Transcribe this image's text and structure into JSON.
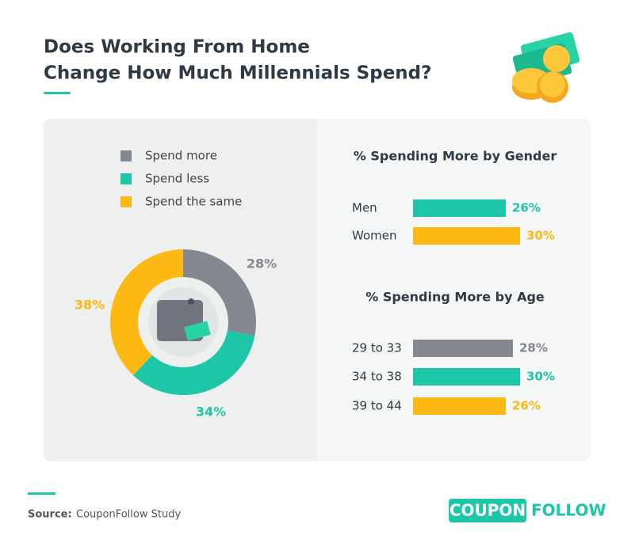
{
  "title": [
    "Does Working From Home",
    "Change How Much Millennials Spend?"
  ],
  "chart_data": [
    {
      "type": "pie",
      "categories": [
        "Spend more",
        "Spend less",
        "Spend the same"
      ],
      "values": [
        28,
        34,
        38
      ],
      "value_labels": [
        "28%",
        "34%",
        "38%"
      ],
      "colors": [
        "#858791",
        "#1dc6a6",
        "#fdb813"
      ]
    },
    {
      "type": "bar",
      "title": "% Spending More by Gender",
      "categories": [
        "Men",
        "Women"
      ],
      "values": [
        26,
        30
      ],
      "value_labels": [
        "26%",
        "30%"
      ],
      "colors": [
        "#1dc6a6",
        "#fdb813"
      ]
    },
    {
      "type": "bar",
      "title": "% Spending More by Age",
      "categories": [
        "29 to 33",
        "34 to 38",
        "39 to 44"
      ],
      "values": [
        28,
        30,
        26
      ],
      "value_labels": [
        "28%",
        "30%",
        "26%"
      ],
      "colors": [
        "#858791",
        "#1dc6a6",
        "#fdb813"
      ]
    }
  ],
  "source": {
    "label": "Source:",
    "text": "CouponFollow Study"
  },
  "logo": [
    "COUPON",
    "FOLLOW"
  ]
}
